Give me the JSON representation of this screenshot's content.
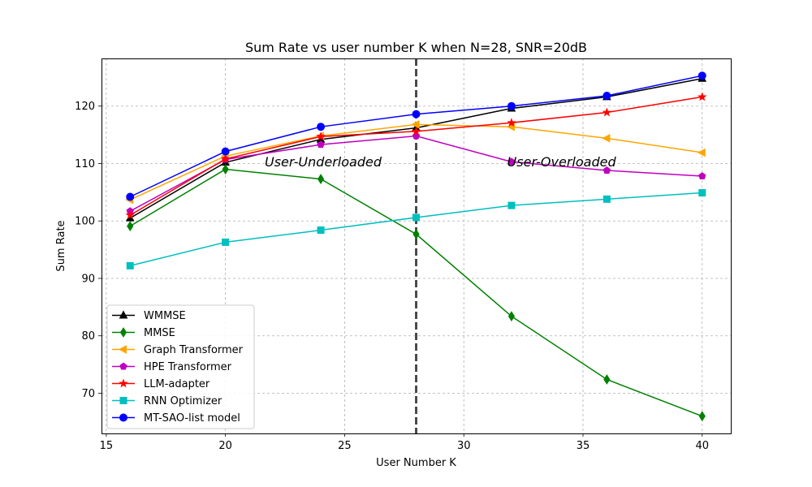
{
  "chart_data": {
    "type": "line",
    "title": "Sum Rate vs user number K when N=28, SNR=20dB",
    "xlabel": "User Number K",
    "ylabel": "Sum Rate",
    "x": [
      16,
      20,
      24,
      28,
      32,
      36,
      40
    ],
    "xlim": [
      14.8,
      41.2
    ],
    "ylim": [
      63.0,
      128.3
    ],
    "xticks": [
      15,
      20,
      25,
      30,
      35,
      40
    ],
    "yticks": [
      70,
      80,
      90,
      100,
      110,
      120
    ],
    "grid": true,
    "legend_position": "lower-left",
    "vline": {
      "x": 28,
      "style": "dashed"
    },
    "annotations": [
      {
        "text": "User-Underloaded",
        "x": 24.1,
        "y": 109.5
      },
      {
        "text": "User-Overloaded",
        "x": 34.1,
        "y": 109.5
      }
    ],
    "series": [
      {
        "name": "WMMSE",
        "color": "#000000",
        "marker": "triangle-up",
        "values": [
          100.5,
          110.2,
          114.2,
          116.2,
          119.6,
          121.6,
          124.8
        ]
      },
      {
        "name": "MMSE",
        "color": "#008000",
        "marker": "thin-diamond",
        "values": [
          99.1,
          109.0,
          107.3,
          97.7,
          83.4,
          72.4,
          66.0
        ]
      },
      {
        "name": "Graph Transformer",
        "color": "#ffa500",
        "marker": "triangle-left",
        "values": [
          103.7,
          111.3,
          114.8,
          116.8,
          116.4,
          114.4,
          111.9
        ]
      },
      {
        "name": "HPE Transformer",
        "color": "#bf00bf",
        "marker": "pentagon",
        "values": [
          101.7,
          110.7,
          113.3,
          114.8,
          110.3,
          108.8,
          107.8
        ]
      },
      {
        "name": "LLM-adapter",
        "color": "#ff0000",
        "marker": "star",
        "values": [
          101.0,
          110.8,
          114.7,
          115.6,
          117.1,
          118.9,
          121.6
        ]
      },
      {
        "name": "RNN Optimizer",
        "color": "#00bfbf",
        "marker": "square",
        "values": [
          92.2,
          96.3,
          98.4,
          100.6,
          102.7,
          103.8,
          104.9
        ]
      },
      {
        "name": "MT-SAO-list model",
        "color": "#0000ff",
        "marker": "circle",
        "values": [
          104.2,
          112.1,
          116.4,
          118.6,
          120.0,
          121.8,
          125.3
        ]
      }
    ]
  }
}
